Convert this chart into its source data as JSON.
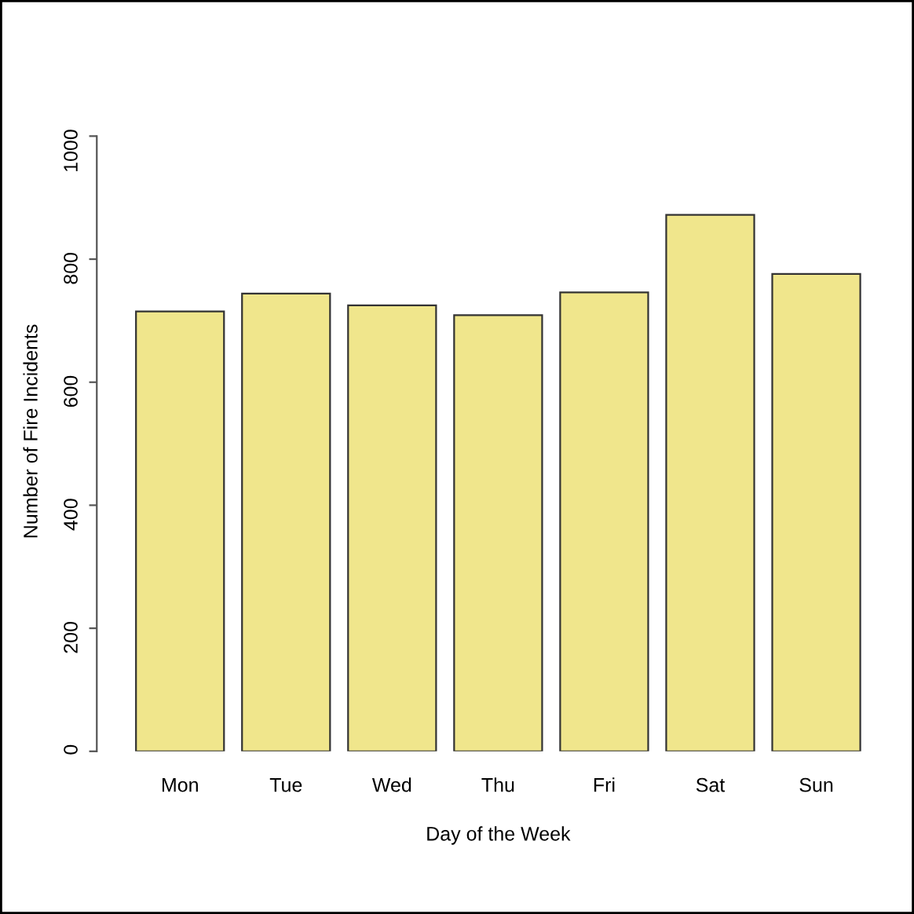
{
  "chart_data": {
    "type": "bar",
    "xlabel": "Day of the Week",
    "ylabel": "Number of Fire Incidents",
    "categories": [
      "Mon",
      "Tue",
      "Wed",
      "Thu",
      "Fri",
      "Sat",
      "Sun"
    ],
    "values": [
      715,
      744,
      725,
      709,
      746,
      872,
      776
    ],
    "color": "#f0e68c",
    "ylim": [
      0,
      1000
    ],
    "yticks": [
      0,
      200,
      400,
      600,
      800,
      1000
    ],
    "grid": false,
    "legend": false
  }
}
